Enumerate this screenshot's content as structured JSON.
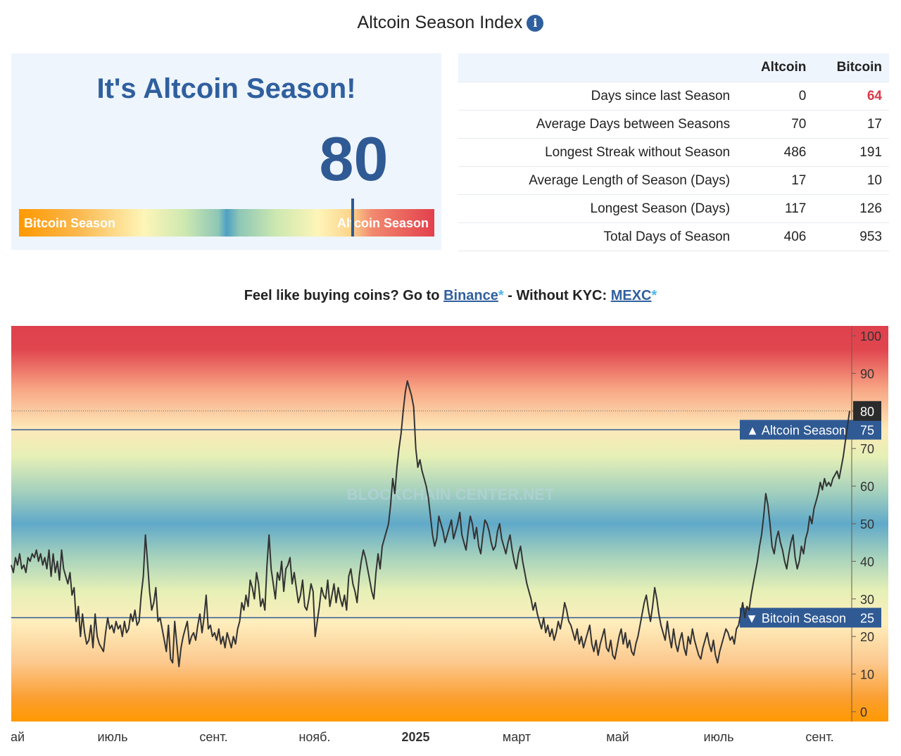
{
  "page": {
    "title": "Altcoin Season Index",
    "info_icon": "info-circle-icon",
    "headline": "It's Altcoin Season!",
    "value": "80",
    "gauge": {
      "left_label": "Bitcoin Season",
      "right_label": "Altcoin Season",
      "level": 80
    }
  },
  "stats": {
    "columns": [
      "Altcoin",
      "Bitcoin"
    ],
    "rows": [
      {
        "label": "Days since last Season",
        "altcoin": "0",
        "bitcoin": "64",
        "bitcoin_color": "#d93a4a"
      },
      {
        "label": "Average Days between Seasons",
        "altcoin": "70",
        "bitcoin": "17"
      },
      {
        "label": "Longest Streak without Season",
        "altcoin": "486",
        "bitcoin": "191"
      },
      {
        "label": "Average Length of Season (Days)",
        "altcoin": "17",
        "bitcoin": "10"
      },
      {
        "label": "Longest Season (Days)",
        "altcoin": "117",
        "bitcoin": "126"
      },
      {
        "label": "Total Days of Season",
        "altcoin": "406",
        "bitcoin": "953"
      }
    ]
  },
  "promo": {
    "prefix": "Feel like buying coins? Go to ",
    "link1": "Binance",
    "middle": " - Without KYC: ",
    "link2": "MEXC",
    "star": "*"
  },
  "chart_data": {
    "type": "line",
    "title": "",
    "xlabel": "",
    "ylabel": "",
    "ylim": [
      0,
      100
    ],
    "y_ticks": [
      0,
      10,
      20,
      30,
      40,
      50,
      60,
      70,
      80,
      90,
      100
    ],
    "x_tick_labels": [
      "ай",
      "июль",
      "сент.",
      "нояб.",
      "2025",
      "март",
      "май",
      "июль",
      "сент."
    ],
    "x_bold_tick": "2025",
    "current_value": 80,
    "watermark": "BLOCKCHAIN CENTER.NET",
    "thresholds": [
      {
        "label": "▲ Altcoin Season",
        "value": 75
      },
      {
        "label": "▼ Bitcoin Season",
        "value": 25
      }
    ],
    "colors": {
      "line": "#333333",
      "threshold": "#2f5a94",
      "high": "#e0414c",
      "mid": "#5aa5c8",
      "low": "#ff9900"
    },
    "series": [
      {
        "values": [
          39,
          37,
          41,
          39,
          42,
          38,
          39,
          37,
          41,
          40,
          42,
          41,
          43,
          40,
          42,
          39,
          41,
          38,
          43,
          36,
          42,
          37,
          40,
          35,
          43,
          38,
          36,
          34,
          37,
          31,
          33,
          24,
          28,
          20,
          26,
          21,
          18,
          19,
          23,
          17,
          26,
          20,
          18,
          17,
          16,
          21,
          25,
          22,
          23,
          21,
          24,
          22,
          23,
          20,
          24,
          21,
          22,
          26,
          24,
          27,
          23,
          24,
          31,
          36,
          47,
          40,
          32,
          27,
          29,
          33,
          24,
          25,
          22,
          19,
          16,
          23,
          14,
          13,
          24,
          18,
          12,
          17,
          20,
          22,
          24,
          18,
          20,
          21,
          19,
          23,
          26,
          21,
          25,
          31,
          22,
          23,
          20,
          21,
          19,
          22,
          18,
          20,
          17,
          21,
          19,
          17,
          20,
          18,
          22,
          24,
          29,
          27,
          31,
          28,
          35,
          33,
          30,
          37,
          34,
          28,
          30,
          27,
          39,
          47,
          38,
          34,
          30,
          37,
          35,
          40,
          32,
          38,
          39,
          41,
          34,
          37,
          33,
          29,
          31,
          35,
          28,
          27,
          30,
          34,
          32,
          20,
          24,
          28,
          33,
          31,
          30,
          35,
          28,
          31,
          34,
          29,
          33,
          30,
          28,
          31,
          27,
          36,
          38,
          34,
          32,
          29,
          36,
          40,
          43,
          41,
          38,
          35,
          32,
          30,
          37,
          42,
          38,
          44,
          46,
          48,
          50,
          55,
          62,
          58,
          65,
          70,
          74,
          80,
          85,
          88,
          86,
          84,
          81,
          70,
          65,
          67,
          64,
          62,
          60,
          57,
          52,
          47,
          44,
          46,
          52,
          50,
          48,
          45,
          47,
          49,
          51,
          46,
          48,
          50,
          53,
          47,
          45,
          43,
          48,
          52,
          50,
          46,
          49,
          44,
          42,
          47,
          51,
          50,
          48,
          45,
          43,
          44,
          48,
          50,
          46,
          44,
          42,
          45,
          47,
          43,
          40,
          38,
          42,
          44,
          40,
          37,
          34,
          32,
          30,
          27,
          29,
          26,
          24,
          22,
          25,
          21,
          23,
          20,
          22,
          19,
          21,
          24,
          22,
          25,
          29,
          27,
          24,
          23,
          21,
          19,
          22,
          18,
          20,
          17,
          19,
          21,
          23,
          18,
          16,
          19,
          15,
          18,
          20,
          22,
          17,
          16,
          19,
          15,
          14,
          17,
          20,
          22,
          18,
          21,
          17,
          19,
          16,
          15,
          18,
          20,
          23,
          26,
          29,
          31,
          27,
          24,
          28,
          33,
          30,
          26,
          23,
          21,
          19,
          24,
          20,
          17,
          22,
          18,
          16,
          19,
          21,
          17,
          15,
          20,
          18,
          22,
          19,
          17,
          15,
          14,
          17,
          19,
          21,
          18,
          16,
          19,
          15,
          13,
          16,
          18,
          20,
          22,
          21,
          19,
          20,
          18,
          22,
          23,
          26,
          29,
          25,
          28,
          27,
          31,
          34,
          37,
          40,
          44,
          47,
          52,
          58,
          55,
          50,
          44,
          42,
          46,
          48,
          45,
          43,
          40,
          38,
          42,
          45,
          47,
          41,
          38,
          40,
          44,
          42,
          46,
          48,
          52,
          50,
          54,
          56,
          58,
          61,
          59,
          62,
          60,
          61,
          60,
          62,
          63,
          64,
          62,
          65,
          68,
          72,
          76,
          80
        ]
      }
    ]
  }
}
